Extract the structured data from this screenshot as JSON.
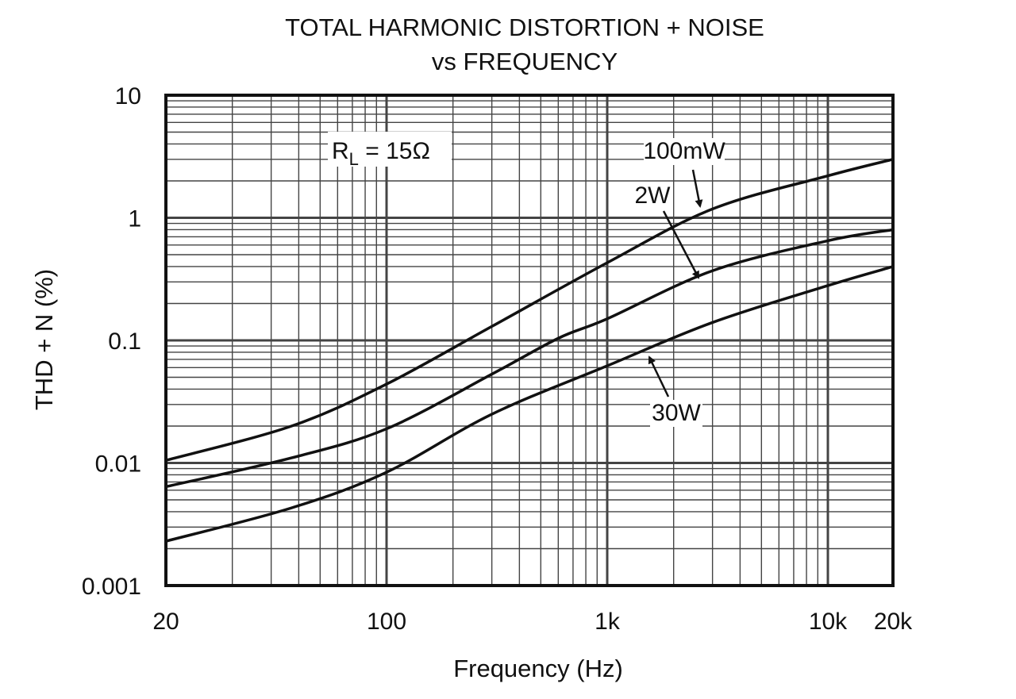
{
  "chart_data": {
    "type": "line",
    "title": "TOTAL HARMONIC DISTORTION + NOISE",
    "subtitle": "vs FREQUENCY",
    "xlabel": "Frequency (Hz)",
    "ylabel": "THD + N (%)",
    "xscale": "log",
    "yscale": "log",
    "xlim": [
      20,
      20000
    ],
    "ylim": [
      0.001,
      10
    ],
    "grid": true,
    "x_ticks": [
      {
        "value": 20,
        "label": "20"
      },
      {
        "value": 100,
        "label": "100"
      },
      {
        "value": 1000,
        "label": "1k"
      },
      {
        "value": 10000,
        "label": "10k"
      },
      {
        "value": 20000,
        "label": "20k"
      }
    ],
    "y_ticks": [
      {
        "value": 10,
        "label": "10"
      },
      {
        "value": 1,
        "label": "1"
      },
      {
        "value": 0.1,
        "label": "0.1"
      },
      {
        "value": 0.01,
        "label": "0.01"
      },
      {
        "value": 0.001,
        "label": "0.001"
      }
    ],
    "annotation": {
      "main": "R",
      "sub": "L",
      "rest": " = 15Ω"
    },
    "series": [
      {
        "name": "100mW",
        "x": [
          20,
          50,
          100,
          300,
          1000,
          3000,
          10000,
          20000
        ],
        "y": [
          0.0105,
          0.02,
          0.044,
          0.13,
          0.43,
          1.18,
          2.2,
          3.0
        ]
      },
      {
        "name": "2W",
        "x": [
          20,
          50,
          100,
          300,
          600,
          1000,
          3000,
          10000,
          20000
        ],
        "y": [
          0.0064,
          0.011,
          0.019,
          0.053,
          0.104,
          0.15,
          0.37,
          0.65,
          0.8
        ]
      },
      {
        "name": "30W",
        "x": [
          20,
          50,
          100,
          300,
          1000,
          3000,
          10000,
          20000
        ],
        "y": [
          0.0023,
          0.0043,
          0.0084,
          0.025,
          0.062,
          0.14,
          0.28,
          0.4
        ]
      }
    ],
    "colors": {
      "line": "#111111",
      "grid": "#444444"
    }
  }
}
